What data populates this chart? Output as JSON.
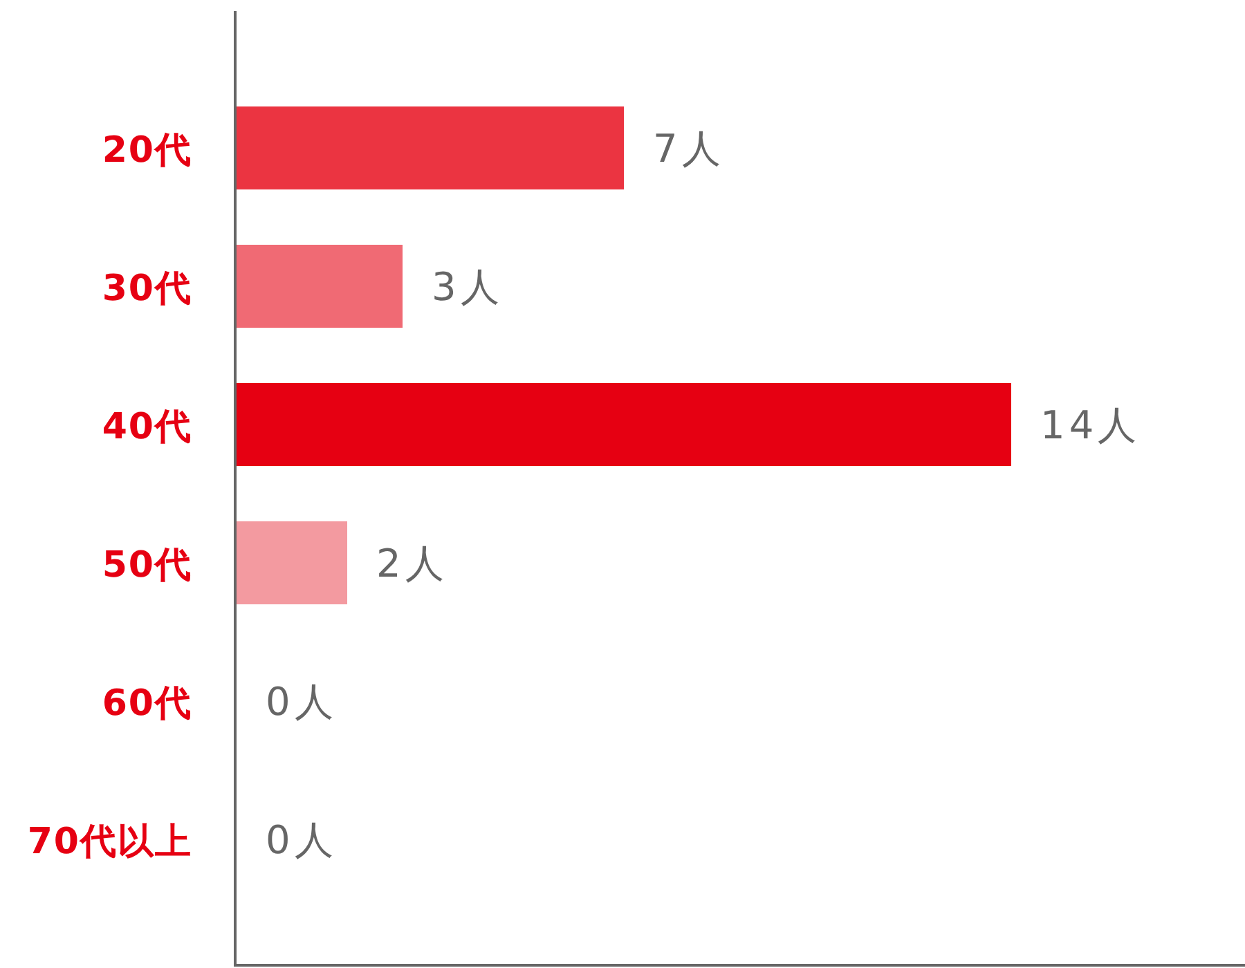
{
  "chart_data": {
    "type": "bar",
    "orientation": "horizontal",
    "categories": [
      "20代",
      "30代",
      "40代",
      "50代",
      "60代",
      "70代以上"
    ],
    "values": [
      7,
      3,
      14,
      2,
      0,
      0
    ],
    "colors": [
      "#eb3441",
      "#f06a74",
      "#e60012",
      "#f39aa0",
      null,
      null
    ],
    "value_labels": [
      "7人",
      "3人",
      "14人",
      "2人",
      "0人",
      "0人"
    ]
  }
}
